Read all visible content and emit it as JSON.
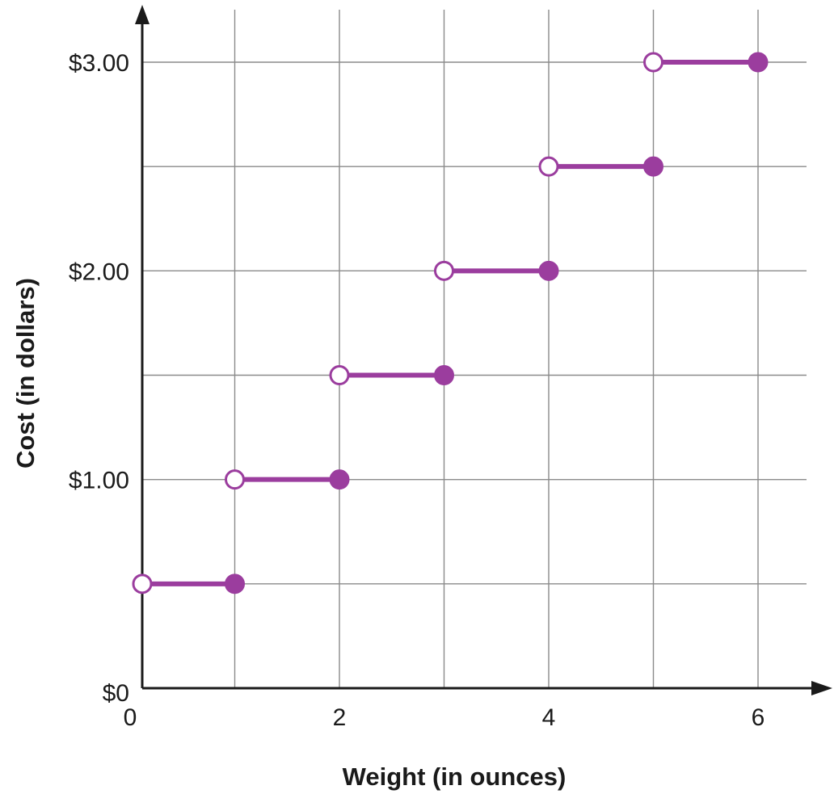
{
  "chart_data": {
    "type": "line",
    "subtype": "step",
    "title": "",
    "xlabel": "Weight (in ounces)",
    "ylabel": "Cost (in dollars)",
    "xlim": [
      0,
      6
    ],
    "ylim": [
      0,
      3
    ],
    "x_ticks": [
      {
        "value": 0,
        "label": "0"
      },
      {
        "value": 2,
        "label": "2"
      },
      {
        "value": 4,
        "label": "4"
      },
      {
        "value": 6,
        "label": "6"
      }
    ],
    "y_ticks": [
      {
        "value": 0,
        "label": "$0"
      },
      {
        "value": 1,
        "label": "$1.00"
      },
      {
        "value": 2,
        "label": "$2.00"
      },
      {
        "value": 3,
        "label": "$3.00"
      }
    ],
    "grid": true,
    "grid_x_step": 1,
    "grid_y_step": 0.5,
    "segments": [
      {
        "x_start": 0,
        "x_end": 1,
        "y": 0.5,
        "start_open": true,
        "end_closed": true
      },
      {
        "x_start": 1,
        "x_end": 2,
        "y": 1.0,
        "start_open": true,
        "end_closed": true
      },
      {
        "x_start": 2,
        "x_end": 3,
        "y": 1.5,
        "start_open": true,
        "end_closed": true
      },
      {
        "x_start": 3,
        "x_end": 4,
        "y": 2.0,
        "start_open": true,
        "end_closed": true
      },
      {
        "x_start": 4,
        "x_end": 5,
        "y": 2.5,
        "start_open": true,
        "end_closed": true
      },
      {
        "x_start": 5,
        "x_end": 6,
        "y": 3.0,
        "start_open": true,
        "end_closed": true
      }
    ],
    "colors": {
      "series": "#9b3d9e",
      "grid": "#8a8a8a",
      "axis": "#1a1a1a"
    }
  }
}
